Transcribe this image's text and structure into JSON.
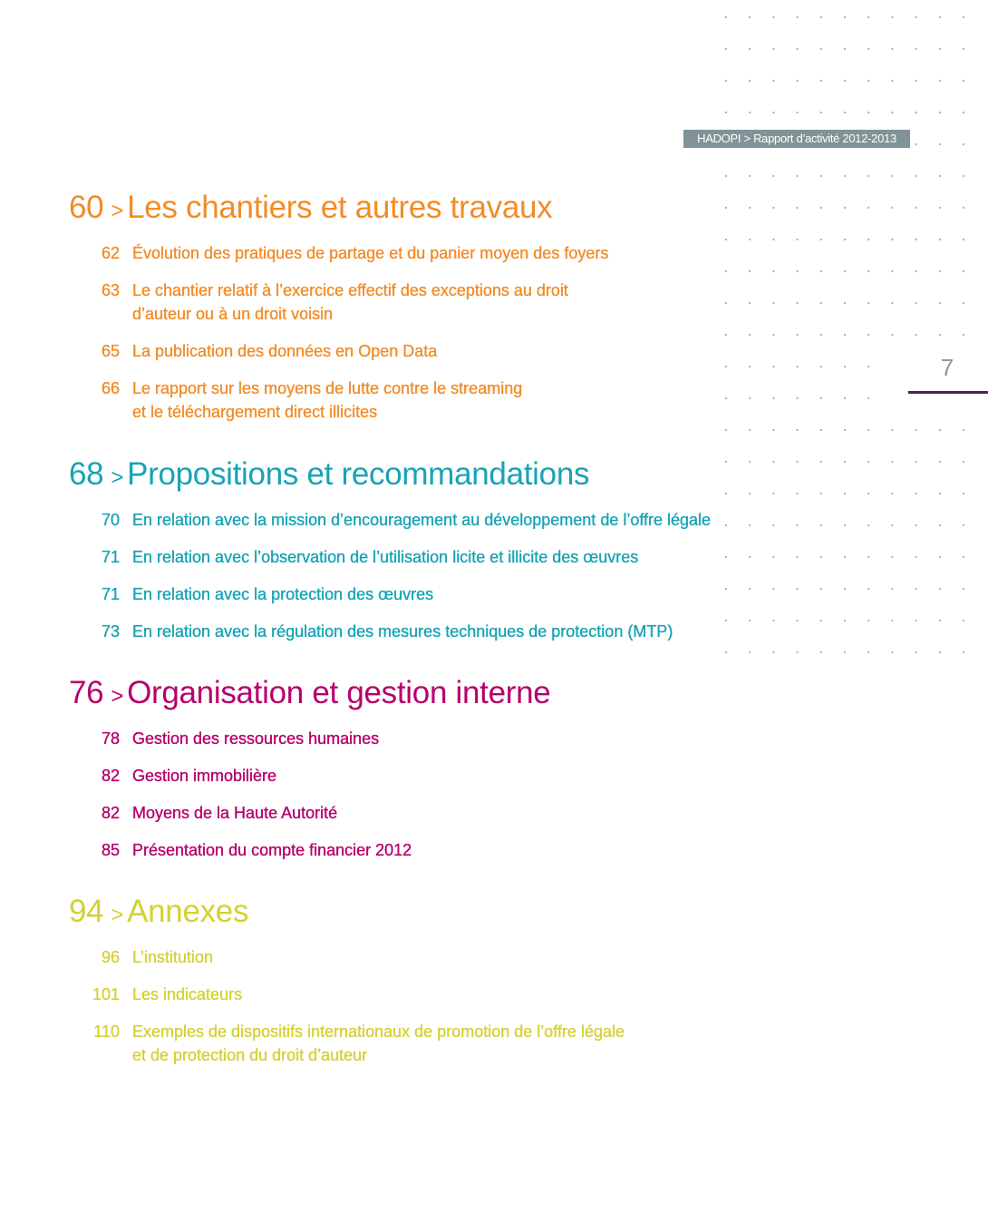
{
  "header": {
    "running_title": "HADOPI > Rapport d’activité 2012-2013",
    "page_number": "7"
  },
  "colors": {
    "chantiers": "#f28c28",
    "propositions": "#17a3b6",
    "organisation": "#b6006c",
    "annexes": "#d3d134",
    "header_bg": "#7f9497",
    "page_rule": "#5b1a5c"
  },
  "sections": [
    {
      "page": "60",
      "arrow": ">",
      "title": "Les chantiers et autres travaux",
      "items": [
        {
          "page": "62",
          "title": "Évolution des pratiques de partage et du panier moyen des foyers"
        },
        {
          "page": "63",
          "title": "Le chantier relatif à l’exercice effectif des exceptions au droit\nd’auteur ou à un droit voisin"
        },
        {
          "page": "65",
          "title": "La publication des données en Open Data"
        },
        {
          "page": "66",
          "title": "Le rapport sur les moyens de lutte contre le streaming\net le téléchargement direct illicites"
        }
      ]
    },
    {
      "page": "68",
      "arrow": ">",
      "title": "Propositions et recommandations",
      "items": [
        {
          "page": "70",
          "title": "En relation avec la mission d’encouragement au développement de l’offre légale"
        },
        {
          "page": "71",
          "title": "En relation avec l’observation de l’utilisation licite et illicite des œuvres"
        },
        {
          "page": "71",
          "title": "En relation avec la protection des œuvres"
        },
        {
          "page": "73",
          "title": "En relation avec la régulation des mesures techniques de protection (MTP)"
        }
      ]
    },
    {
      "page": "76",
      "arrow": ">",
      "title": "Organisation et gestion interne",
      "items": [
        {
          "page": "78",
          "title": "Gestion des ressources humaines"
        },
        {
          "page": "82",
          "title": "Gestion immobilière"
        },
        {
          "page": "82",
          "title": "Moyens de la Haute Autorité"
        },
        {
          "page": "85",
          "title": "Présentation du compte financier 2012"
        }
      ]
    },
    {
      "page": "94",
      "arrow": ">",
      "title": "Annexes",
      "items": [
        {
          "page": "96",
          "title": "L’institution"
        },
        {
          "page": "101",
          "title": "Les indicateurs"
        },
        {
          "page": "110",
          "title": "Exemples de dispositifs internationaux de promotion de l’offre légale\net de protection du droit d’auteur"
        }
      ]
    }
  ]
}
